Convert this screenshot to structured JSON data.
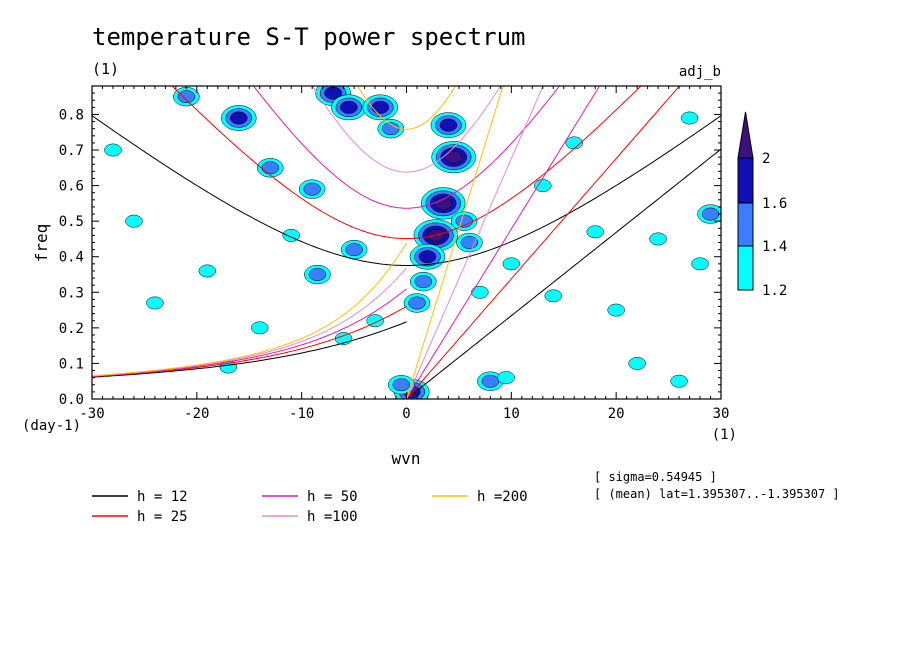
{
  "chart_data": {
    "type": "heatmap",
    "title": "temperature S-T power spectrum",
    "subtitle_left": "(1)",
    "subtitle_right": "adj_b",
    "xlabel": "wvn",
    "ylabel": "freq",
    "x_unit": "(1)",
    "y_unit": "(day-1)",
    "xlim": [
      -30,
      30
    ],
    "ylim": [
      0.0,
      0.88
    ],
    "x_ticks": [
      -30,
      -20,
      -10,
      0,
      10,
      20,
      30
    ],
    "x_tick_labels": [
      "-30",
      "-20",
      "-10",
      "0",
      "10",
      "20",
      "30"
    ],
    "y_ticks": [
      0.0,
      0.1,
      0.2,
      0.3,
      0.4,
      0.5,
      0.6,
      0.7,
      0.8
    ],
    "y_tick_labels": [
      "0.0",
      "0.1",
      "0.2",
      "0.3",
      "0.4",
      "0.5",
      "0.6",
      "0.7",
      "0.8"
    ],
    "colorbar": {
      "levels": [
        1.2,
        1.4,
        1.6,
        2
      ],
      "level_labels": [
        "1.2",
        "1.4",
        "1.6",
        "2"
      ],
      "colors": [
        "#00ffff",
        "#3a7dff",
        "#1010b4",
        "#3c107d"
      ]
    },
    "contour_blobs": [
      {
        "x": 4.5,
        "y": 0.68,
        "level": 4
      },
      {
        "x": 4.0,
        "y": 0.77,
        "level": 3
      },
      {
        "x": 3.5,
        "y": 0.55,
        "level": 4
      },
      {
        "x": 2.8,
        "y": 0.46,
        "level": 4
      },
      {
        "x": 2.0,
        "y": 0.4,
        "level": 3
      },
      {
        "x": 1.6,
        "y": 0.33,
        "level": 2
      },
      {
        "x": 1.0,
        "y": 0.27,
        "level": 2
      },
      {
        "x": 0.5,
        "y": 0.02,
        "level": 3
      },
      {
        "x": -0.5,
        "y": 0.04,
        "level": 2
      },
      {
        "x": -7.0,
        "y": 0.86,
        "level": 3
      },
      {
        "x": -5.5,
        "y": 0.82,
        "level": 3
      },
      {
        "x": -2.5,
        "y": 0.82,
        "level": 3
      },
      {
        "x": -1.5,
        "y": 0.76,
        "level": 2
      },
      {
        "x": 5.5,
        "y": 0.5,
        "level": 2
      },
      {
        "x": 6.0,
        "y": 0.44,
        "level": 2
      },
      {
        "x": -16.0,
        "y": 0.79,
        "level": 3
      },
      {
        "x": -13.0,
        "y": 0.65,
        "level": 2
      },
      {
        "x": -9.0,
        "y": 0.59,
        "level": 2
      },
      {
        "x": -5.0,
        "y": 0.42,
        "level": 2
      },
      {
        "x": -8.5,
        "y": 0.35,
        "level": 2
      },
      {
        "x": -21.0,
        "y": 0.85,
        "level": 2
      },
      {
        "x": 8.0,
        "y": 0.05,
        "level": 2
      },
      {
        "x": 9.5,
        "y": 0.06,
        "level": 1
      },
      {
        "x": 13.0,
        "y": 0.6,
        "level": 1
      },
      {
        "x": 20.0,
        "y": 0.25,
        "level": 1
      },
      {
        "x": 28.0,
        "y": 0.38,
        "level": 1
      },
      {
        "x": 29.0,
        "y": 0.52,
        "level": 2
      },
      {
        "x": 27.0,
        "y": 0.79,
        "level": 1
      },
      {
        "x": -28.0,
        "y": 0.7,
        "level": 1
      },
      {
        "x": -24.0,
        "y": 0.27,
        "level": 1
      },
      {
        "x": -19.0,
        "y": 0.36,
        "level": 1
      },
      {
        "x": -14.0,
        "y": 0.2,
        "level": 1
      },
      {
        "x": -6.0,
        "y": 0.17,
        "level": 1
      },
      {
        "x": 14.0,
        "y": 0.29,
        "level": 1
      },
      {
        "x": 22.0,
        "y": 0.1,
        "level": 1
      },
      {
        "x": 16.0,
        "y": 0.72,
        "level": 1
      },
      {
        "x": 24.0,
        "y": 0.45,
        "level": 1
      },
      {
        "x": -26.0,
        "y": 0.5,
        "level": 1
      },
      {
        "x": -11.0,
        "y": 0.46,
        "level": 1
      },
      {
        "x": 10.0,
        "y": 0.38,
        "level": 1
      },
      {
        "x": 26.0,
        "y": 0.05,
        "level": 1
      },
      {
        "x": -17.0,
        "y": 0.09,
        "level": 1
      },
      {
        "x": 18.0,
        "y": 0.47,
        "level": 1
      },
      {
        "x": -3.0,
        "y": 0.22,
        "level": 1
      },
      {
        "x": 7.0,
        "y": 0.3,
        "level": 1
      }
    ],
    "dispersion_curves": [
      {
        "name": "h = 12",
        "h": 12,
        "color": "#000000"
      },
      {
        "name": "h = 25",
        "h": 25,
        "color": "#ff0000"
      },
      {
        "name": "h = 50",
        "h": 50,
        "color": "#e01ab4"
      },
      {
        "name": "h =100",
        "h": 100,
        "color": "#e28ad6"
      },
      {
        "name": "h =200",
        "h": 200,
        "color": "#ffc000"
      }
    ],
    "annotations": [
      "[ sigma=0.54945 ]",
      "[ (mean) lat=1.395307..-1.395307 ]"
    ]
  }
}
